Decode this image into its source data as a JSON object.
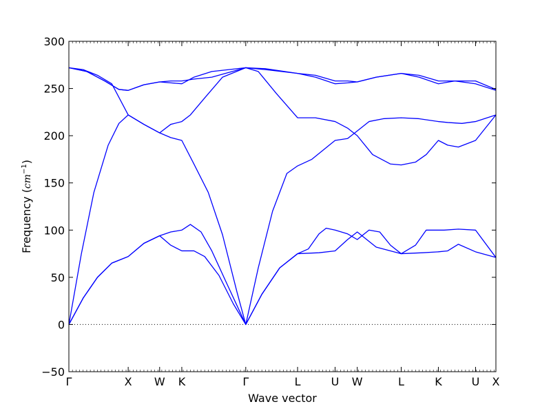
{
  "chart_data": {
    "type": "line",
    "title": "",
    "xlabel": "Wave vector",
    "ylabel_text": "Frequency (",
    "ylabel_math": "cm",
    "ylabel_sup": "−1",
    "ylabel_close": ")",
    "ylim": [
      -50,
      300
    ],
    "yticks": [
      -50,
      0,
      50,
      100,
      150,
      200,
      250,
      300
    ],
    "ytick_labels": [
      "−50",
      "0",
      "50",
      "100",
      "150",
      "200",
      "250",
      "300"
    ],
    "xlim": [
      0,
      11.95
    ],
    "xticks": [
      {
        "x": 0,
        "label": "Γ"
      },
      {
        "x": 1.66,
        "label": "X"
      },
      {
        "x": 2.54,
        "label": "W"
      },
      {
        "x": 3.16,
        "label": "K"
      },
      {
        "x": 4.95,
        "label": "Γ"
      },
      {
        "x": 6.4,
        "label": "L"
      },
      {
        "x": 7.45,
        "label": "U"
      },
      {
        "x": 8.07,
        "label": "W"
      },
      {
        "x": 9.3,
        "label": "L"
      },
      {
        "x": 10.34,
        "label": "K"
      },
      {
        "x": 11.38,
        "label": "U"
      },
      {
        "x": 11.95,
        "label": "X"
      }
    ],
    "zero_line": true,
    "line_color": "#0000ff",
    "series": [
      {
        "points": [
          [
            0,
            0
          ],
          [
            0.4,
            28
          ],
          [
            0.8,
            50
          ],
          [
            1.2,
            65
          ],
          [
            1.66,
            72
          ],
          [
            2.1,
            86
          ],
          [
            2.54,
            94
          ],
          [
            2.85,
            84
          ],
          [
            3.16,
            78
          ],
          [
            3.5,
            78
          ],
          [
            3.8,
            72
          ],
          [
            4.2,
            52
          ],
          [
            4.6,
            22
          ],
          [
            4.95,
            0
          ],
          [
            5.4,
            32
          ],
          [
            5.9,
            60
          ],
          [
            6.4,
            75
          ],
          [
            7.0,
            76
          ],
          [
            7.45,
            78
          ],
          [
            7.8,
            90
          ],
          [
            8.07,
            98
          ],
          [
            8.6,
            82
          ],
          [
            9.3,
            75
          ],
          [
            9.9,
            76
          ],
          [
            10.34,
            77
          ],
          [
            10.6,
            78
          ],
          [
            10.9,
            85
          ],
          [
            11.38,
            77
          ],
          [
            11.95,
            71
          ]
        ]
      },
      {
        "points": [
          [
            0,
            0
          ],
          [
            0.4,
            28
          ],
          [
            0.8,
            50
          ],
          [
            1.2,
            65
          ],
          [
            1.66,
            72
          ],
          [
            2.1,
            86
          ],
          [
            2.54,
            94
          ],
          [
            2.85,
            98
          ],
          [
            3.16,
            100
          ],
          [
            3.4,
            106
          ],
          [
            3.7,
            98
          ],
          [
            4.0,
            78
          ],
          [
            4.4,
            45
          ],
          [
            4.95,
            0
          ],
          [
            5.4,
            32
          ],
          [
            5.9,
            60
          ],
          [
            6.4,
            75
          ],
          [
            6.7,
            80
          ],
          [
            7.0,
            96
          ],
          [
            7.2,
            102
          ],
          [
            7.45,
            100
          ],
          [
            7.8,
            96
          ],
          [
            8.07,
            90
          ],
          [
            8.4,
            100
          ],
          [
            8.7,
            98
          ],
          [
            9.0,
            84
          ],
          [
            9.3,
            75
          ],
          [
            9.7,
            84
          ],
          [
            10.0,
            100
          ],
          [
            10.34,
            100
          ],
          [
            10.5,
            100
          ],
          [
            10.9,
            101
          ],
          [
            11.38,
            100
          ],
          [
            11.95,
            71
          ]
        ]
      },
      {
        "points": [
          [
            0,
            0
          ],
          [
            0.35,
            75
          ],
          [
            0.7,
            140
          ],
          [
            1.1,
            190
          ],
          [
            1.4,
            213
          ],
          [
            1.66,
            222
          ],
          [
            2.1,
            212
          ],
          [
            2.54,
            203
          ],
          [
            2.85,
            198
          ],
          [
            3.16,
            195
          ],
          [
            3.5,
            170
          ],
          [
            3.9,
            140
          ],
          [
            4.3,
            95
          ],
          [
            4.7,
            35
          ],
          [
            4.95,
            0
          ],
          [
            5.3,
            60
          ],
          [
            5.7,
            120
          ],
          [
            6.1,
            160
          ],
          [
            6.4,
            168
          ],
          [
            6.8,
            175
          ],
          [
            7.45,
            195
          ],
          [
            7.8,
            197
          ],
          [
            8.07,
            205
          ],
          [
            8.4,
            215
          ],
          [
            8.8,
            218
          ],
          [
            9.3,
            219
          ],
          [
            9.8,
            218
          ],
          [
            10.34,
            215
          ],
          [
            10.6,
            214
          ],
          [
            11.0,
            213
          ],
          [
            11.38,
            215
          ],
          [
            11.95,
            222
          ]
        ]
      },
      {
        "points": [
          [
            0,
            272
          ],
          [
            0.4,
            270
          ],
          [
            0.8,
            264
          ],
          [
            1.2,
            255
          ],
          [
            1.66,
            222
          ],
          [
            2.1,
            212
          ],
          [
            2.54,
            203
          ],
          [
            2.85,
            212
          ],
          [
            3.16,
            215
          ],
          [
            3.4,
            222
          ],
          [
            3.8,
            240
          ],
          [
            4.3,
            262
          ],
          [
            4.95,
            272
          ],
          [
            5.3,
            268
          ],
          [
            5.8,
            245
          ],
          [
            6.4,
            219
          ],
          [
            6.9,
            219
          ],
          [
            7.45,
            215
          ],
          [
            7.8,
            208
          ],
          [
            8.07,
            200
          ],
          [
            8.5,
            180
          ],
          [
            9.0,
            170
          ],
          [
            9.3,
            169
          ],
          [
            9.7,
            172
          ],
          [
            10.0,
            180
          ],
          [
            10.34,
            195
          ],
          [
            10.6,
            190
          ],
          [
            10.9,
            188
          ],
          [
            11.38,
            195
          ],
          [
            11.95,
            222
          ]
        ]
      },
      {
        "points": [
          [
            0,
            272
          ],
          [
            0.5,
            268
          ],
          [
            1.0,
            258
          ],
          [
            1.4,
            249
          ],
          [
            1.66,
            248
          ],
          [
            2.1,
            254
          ],
          [
            2.54,
            257
          ],
          [
            2.85,
            256
          ],
          [
            3.16,
            255
          ],
          [
            3.5,
            262
          ],
          [
            4.0,
            268
          ],
          [
            4.95,
            272
          ],
          [
            5.5,
            270
          ],
          [
            6.4,
            266
          ],
          [
            6.9,
            262
          ],
          [
            7.45,
            255
          ],
          [
            7.8,
            256
          ],
          [
            8.07,
            257
          ],
          [
            8.6,
            262
          ],
          [
            9.3,
            266
          ],
          [
            9.8,
            262
          ],
          [
            10.34,
            255
          ],
          [
            10.8,
            258
          ],
          [
            11.38,
            255
          ],
          [
            11.95,
            248
          ]
        ]
      },
      {
        "points": [
          [
            0,
            272
          ],
          [
            0.5,
            268
          ],
          [
            1.0,
            258
          ],
          [
            1.4,
            249
          ],
          [
            1.66,
            248
          ],
          [
            2.1,
            254
          ],
          [
            2.54,
            257
          ],
          [
            2.85,
            258
          ],
          [
            3.16,
            258
          ],
          [
            3.5,
            260
          ],
          [
            4.0,
            262
          ],
          [
            4.95,
            272
          ],
          [
            5.5,
            271
          ],
          [
            6.4,
            266
          ],
          [
            6.9,
            264
          ],
          [
            7.45,
            258
          ],
          [
            7.8,
            258
          ],
          [
            8.07,
            257
          ],
          [
            8.6,
            262
          ],
          [
            9.3,
            266
          ],
          [
            9.8,
            264
          ],
          [
            10.34,
            258
          ],
          [
            10.8,
            258
          ],
          [
            11.38,
            258
          ],
          [
            11.95,
            249
          ]
        ]
      }
    ]
  }
}
